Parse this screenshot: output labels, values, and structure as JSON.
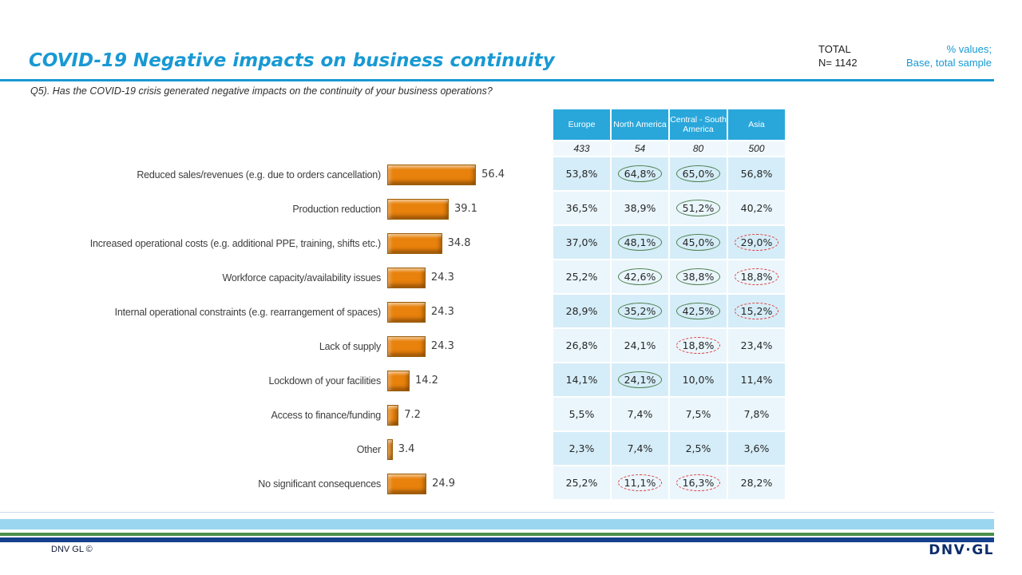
{
  "header": {
    "title": "COVID-19 Negative impacts on business continuity",
    "total_label": "TOTAL",
    "total_n": "N= 1142",
    "note_line1": "% values;",
    "note_line2": "Base, total sample"
  },
  "question": "Q5). Has the COVID-19  crisis generated negative impacts on the continuity of your business operations?",
  "chart_data": {
    "type": "bar",
    "orientation": "horizontal",
    "title": "COVID-19 Negative impacts on business continuity",
    "categories": [
      "Reduced sales/revenues (e.g. due to orders cancellation)",
      "Production reduction",
      "Increased operational costs (e.g. additional PPE, training, shifts etc.)",
      "Workforce capacity/availability issues",
      "Internal operational constraints (e.g. rearrangement  of spaces)",
      "Lack of supply",
      "Lockdown of your facilities",
      "Access to finance/funding",
      "Other",
      "No significant consequences"
    ],
    "values": [
      56.4,
      39.1,
      34.8,
      24.3,
      24.3,
      24.3,
      14.2,
      7.2,
      3.4,
      24.9
    ],
    "xlim": [
      0,
      60
    ],
    "grid": false,
    "legend": false
  },
  "table": {
    "columns": [
      "Europe",
      "North America",
      "Central - South America",
      "Asia"
    ],
    "base": [
      "433",
      "54",
      "80",
      "500"
    ],
    "rows": [
      {
        "cells": [
          {
            "v": "53,8%"
          },
          {
            "v": "64,8%",
            "hl": "green"
          },
          {
            "v": "65,0%",
            "hl": "green"
          },
          {
            "v": "56,8%"
          }
        ]
      },
      {
        "cells": [
          {
            "v": "36,5%"
          },
          {
            "v": "38,9%"
          },
          {
            "v": "51,2%",
            "hl": "green"
          },
          {
            "v": "40,2%"
          }
        ]
      },
      {
        "cells": [
          {
            "v": "37,0%"
          },
          {
            "v": "48,1%",
            "hl": "green"
          },
          {
            "v": "45,0%",
            "hl": "green"
          },
          {
            "v": "29,0%",
            "hl": "red"
          }
        ]
      },
      {
        "cells": [
          {
            "v": "25,2%"
          },
          {
            "v": "42,6%",
            "hl": "green"
          },
          {
            "v": "38,8%",
            "hl": "green"
          },
          {
            "v": "18,8%",
            "hl": "red"
          }
        ]
      },
      {
        "cells": [
          {
            "v": "28,9%"
          },
          {
            "v": "35,2%",
            "hl": "green"
          },
          {
            "v": "42,5%",
            "hl": "green"
          },
          {
            "v": "15,2%",
            "hl": "red"
          }
        ]
      },
      {
        "cells": [
          {
            "v": "26,8%"
          },
          {
            "v": "24,1%"
          },
          {
            "v": "18,8%",
            "hl": "red"
          },
          {
            "v": "23,4%"
          }
        ]
      },
      {
        "cells": [
          {
            "v": "14,1%"
          },
          {
            "v": "24,1%",
            "hl": "green"
          },
          {
            "v": "10,0%"
          },
          {
            "v": "11,4%"
          }
        ]
      },
      {
        "cells": [
          {
            "v": "5,5%"
          },
          {
            "v": "7,4%"
          },
          {
            "v": "7,5%"
          },
          {
            "v": "7,8%"
          }
        ]
      },
      {
        "cells": [
          {
            "v": "2,3%"
          },
          {
            "v": "7,4%"
          },
          {
            "v": "2,5%"
          },
          {
            "v": "3,6%"
          }
        ]
      },
      {
        "cells": [
          {
            "v": "25,2%"
          },
          {
            "v": "11,1%",
            "hl": "red"
          },
          {
            "v": "16,3%",
            "hl": "red"
          },
          {
            "v": "28,2%"
          }
        ]
      }
    ]
  },
  "footer": {
    "copyright": "DNV GL ©",
    "logo": "DNV·GL"
  },
  "colors": {
    "accent": "#1899D3",
    "bar": "#E8820C",
    "table_header_bg": "#29A7DB",
    "row_dark": "#D5EDF8",
    "row_light": "#EAF6FC",
    "base_row_bg": "#F0F8FD",
    "circle_green": "#4E7E4E",
    "circle_red": "#E23D3D",
    "stripe_light_blue": "#9AD6EF",
    "stripe_green": "#4A8F4B",
    "stripe_navy": "#15418C",
    "logo_navy": "#0D2D6B"
  }
}
